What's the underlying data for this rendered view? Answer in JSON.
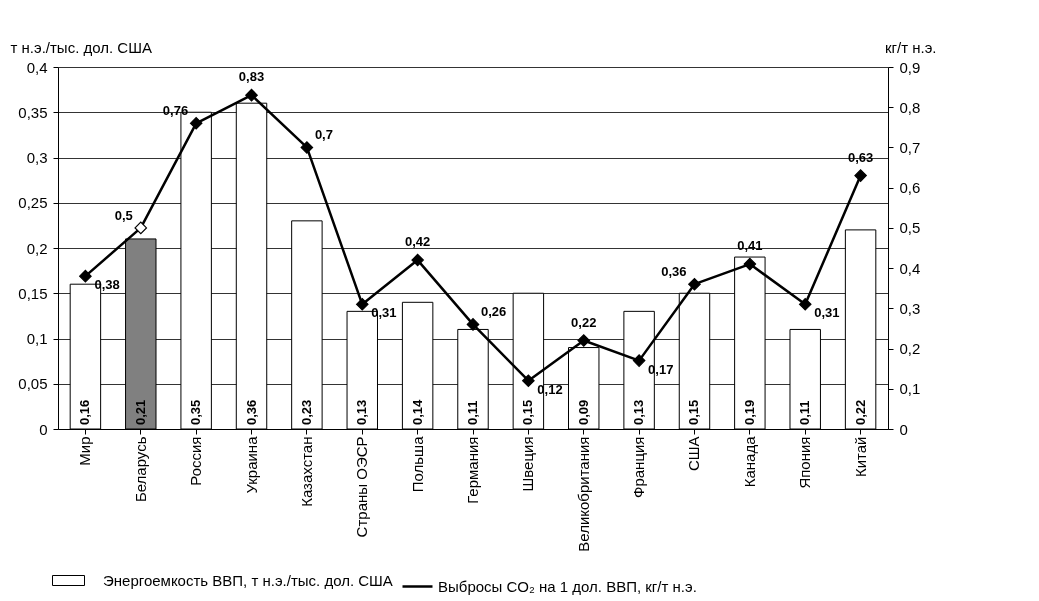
{
  "chart_data": {
    "type": "bar",
    "ylabel": "т н.э./тыс. дол. США",
    "y2label": "кг/т н.э.",
    "categories": [
      "Мир",
      "Беларусь",
      "Россия",
      "Украина",
      "Казахстан",
      "Страны ОЭСР",
      "Польша",
      "Германия",
      "Швеция",
      "Великобритания",
      "Франция",
      "США",
      "Канада",
      "Япония",
      "Китай"
    ],
    "series": [
      {
        "name": "Энергоемкость ВВП, т н.э./тыс. дол. США",
        "color": "#ffffff",
        "colors": [
          "#ffffff",
          "#808080",
          "#ffffff",
          "#ffffff",
          "#ffffff",
          "#ffffff",
          "#ffffff",
          "#ffffff",
          "#ffffff",
          "#ffffff",
          "#ffffff",
          "#ffffff",
          "#ffffff",
          "#ffffff",
          "#ffffff"
        ],
        "values": [
          0.16,
          0.21,
          0.35,
          0.36,
          0.23,
          0.13,
          0.14,
          0.11,
          0.15,
          0.09,
          0.13,
          0.15,
          0.19,
          0.11,
          0.22
        ],
        "value_labels": [
          "0,16",
          "0,21",
          "0,35",
          "0,36",
          "0,23",
          "0,13",
          "0,14",
          "0,11",
          "0,15",
          "0,09",
          "0,13",
          "0,15",
          "0,19",
          "0,11",
          "0,22"
        ]
      },
      {
        "name": "Выбросы CO₂ на 1 дол. ВВП, кг/т н.э.",
        "type": "line",
        "axis": "y2",
        "color": "#000000",
        "colors": [
          "#000000",
          "#ffffff",
          "#000000",
          "#000000",
          "#000000",
          "#000000",
          "#000000",
          "#000000",
          "#000000",
          "#000000",
          "#000000",
          "#000000",
          "#000000",
          "#000000",
          "#000000"
        ],
        "values": [
          0.38,
          0.5,
          0.76,
          0.83,
          0.7,
          0.31,
          0.42,
          0.26,
          0.12,
          0.22,
          0.17,
          0.36,
          0.41,
          0.31,
          0.63
        ],
        "value_labels": [
          "0,38",
          "0,5",
          "0,76",
          "0,83",
          "0,7",
          "0,31",
          "0,42",
          "0,26",
          "0,12",
          "0,22",
          "0,17",
          "0,36",
          "0,41",
          "0,31",
          "0,63"
        ]
      }
    ],
    "ylim": [
      0,
      0.4
    ],
    "yticks": [
      0,
      {
        "value": 0.05,
        "label": "0,05"
      },
      {
        "value": 0.1,
        "label": "0,1"
      },
      {
        "value": 0.15,
        "label": "0,15"
      },
      {
        "value": 0.2,
        "label": "0,2"
      },
      {
        "value": 0.25,
        "label": "0,25"
      },
      {
        "value": 0.3,
        "label": "0,3"
      },
      {
        "value": 0.35,
        "label": "0,35"
      },
      {
        "value": 0.4,
        "label": "0,4"
      }
    ],
    "y2lim": [
      0,
      0.9
    ],
    "y2ticks": [
      0,
      {
        "value": 0.1,
        "label": "0,1"
      },
      {
        "value": 0.2,
        "label": "0,2"
      },
      {
        "value": 0.3,
        "label": "0,3"
      },
      {
        "value": 0.4,
        "label": "0,4"
      },
      {
        "value": 0.5,
        "label": "0,5"
      },
      {
        "value": 0.6,
        "label": "0,6"
      },
      {
        "value": 0.7,
        "label": "0,7"
      },
      {
        "value": 0.8,
        "label": "0,8"
      },
      {
        "value": 0.9,
        "label": "0,9"
      }
    ],
    "grid": "y",
    "legend": "bottom",
    "marker": "diamond",
    "line_style": "solid"
  }
}
